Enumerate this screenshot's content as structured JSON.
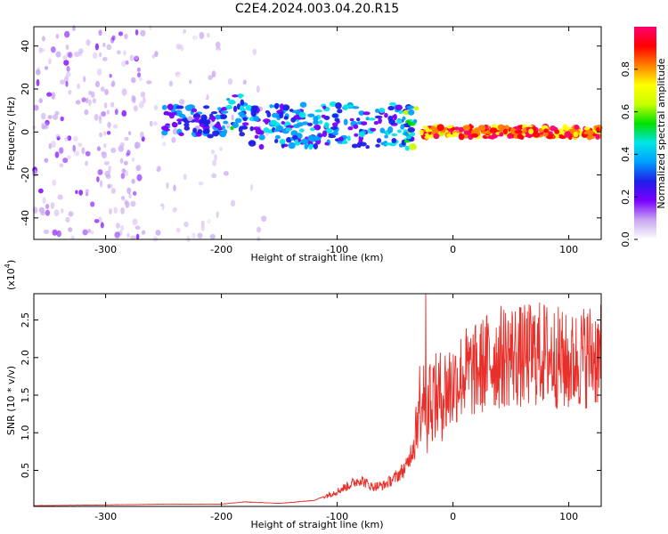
{
  "title": "C2E4.2024.003.04.20.R15",
  "chart_data": [
    {
      "type": "heatmap",
      "xlabel": "Height of straight line (km)",
      "ylabel": "Frequency (Hz)",
      "xlim": [
        -362,
        128
      ],
      "ylim": [
        -50,
        49
      ],
      "x_ticks": [
        -300,
        -200,
        -100,
        0,
        100
      ],
      "y_ticks": [
        -40,
        -20,
        0,
        20,
        40
      ],
      "x_tick_labels": [
        "-300",
        "-200",
        "-100",
        "0",
        "100"
      ],
      "y_tick_labels": [
        "-40",
        "-20",
        "0",
        "20",
        "40"
      ],
      "colorbar": {
        "label": "Normalized spectral amplitude",
        "range": [
          0.0,
          1.0
        ],
        "ticks": [
          0.0,
          0.2,
          0.4,
          0.6,
          0.8
        ],
        "tick_labels": [
          "0.0",
          "0.2",
          "0.4",
          "0.6",
          "0.8"
        ],
        "colors": [
          "#ffffff",
          "#c9a8f0",
          "#7a00ff",
          "#1e1ee8",
          "#00a0ff",
          "#00e6e6",
          "#00e000",
          "#c8ff00",
          "#ffff00",
          "#ff8000",
          "#ff0000",
          "#ff0070"
        ]
      },
      "bands": [
        {
          "x": [
            -362,
            -265
          ],
          "freq_center": 0,
          "freq_halfwidth": 50,
          "amplitude": 0.15
        },
        {
          "x": [
            -265,
            -190
          ],
          "freq_center": 0,
          "freq_halfwidth": 50,
          "amplitude": 0.08
        },
        {
          "x": [
            -180,
            -160
          ],
          "freq_center": 0,
          "freq_halfwidth": 50,
          "amplitude": 0.07
        },
        {
          "x": [
            -250,
            -195
          ],
          "freq_center": 5,
          "freq_halfwidth": 7,
          "amplitude": 0.3
        },
        {
          "x": [
            -195,
            -180
          ],
          "freq_center": 8,
          "freq_halfwidth": 10,
          "amplitude": 0.45
        },
        {
          "x": [
            -180,
            -35
          ],
          "freq_center": 3,
          "freq_halfwidth": 10,
          "amplitude": 0.35
        },
        {
          "x": [
            -40,
            -30
          ],
          "freq_center": 4,
          "freq_halfwidth": 12,
          "amplitude": 0.5
        },
        {
          "x": [
            -28,
            128
          ],
          "freq_center": 0,
          "freq_halfwidth": 2.5,
          "amplitude": 0.95
        }
      ]
    },
    {
      "type": "line",
      "xlabel": "Height of straight line (km)",
      "ylabel": "SNR (10 * v/v)",
      "y_multiplier": "(x10",
      "y_multiplier_exp": "4",
      "y_multiplier_close": ")",
      "xlim": [
        -362,
        128
      ],
      "ylim": [
        0.02,
        2.85
      ],
      "x_ticks": [
        -300,
        -200,
        -100,
        0,
        100
      ],
      "y_ticks": [
        0.5,
        1.0,
        1.5,
        2.0,
        2.5
      ],
      "x_tick_labels": [
        "-300",
        "-200",
        "-100",
        "0",
        "100"
      ],
      "y_tick_labels": [
        "0.5",
        "1.0",
        "1.5",
        "2.0",
        "2.5"
      ],
      "color": "#e8302a",
      "series": [
        {
          "x": [
            -362,
            -300,
            -250,
            -200,
            -180,
            -150,
            -120,
            -100,
            -90,
            -80,
            -70,
            -60,
            -50,
            -40,
            -35,
            -30,
            -27,
            -25,
            -22,
            -20,
            -15,
            -10,
            0,
            10,
            20,
            30,
            40,
            50,
            60,
            70,
            80,
            90,
            100,
            110,
            120,
            128
          ],
          "y": [
            0.03,
            0.04,
            0.05,
            0.05,
            0.08,
            0.06,
            0.1,
            0.22,
            0.3,
            0.38,
            0.28,
            0.3,
            0.4,
            0.55,
            0.8,
            1.35,
            1.5,
            1.7,
            1.1,
            1.55,
            1.45,
            1.5,
            1.65,
            1.8,
            1.82,
            1.95,
            2.0,
            2.05,
            2.0,
            2.05,
            2.05,
            2.0,
            1.9,
            2.0,
            2.05,
            2.0
          ]
        }
      ]
    }
  ]
}
